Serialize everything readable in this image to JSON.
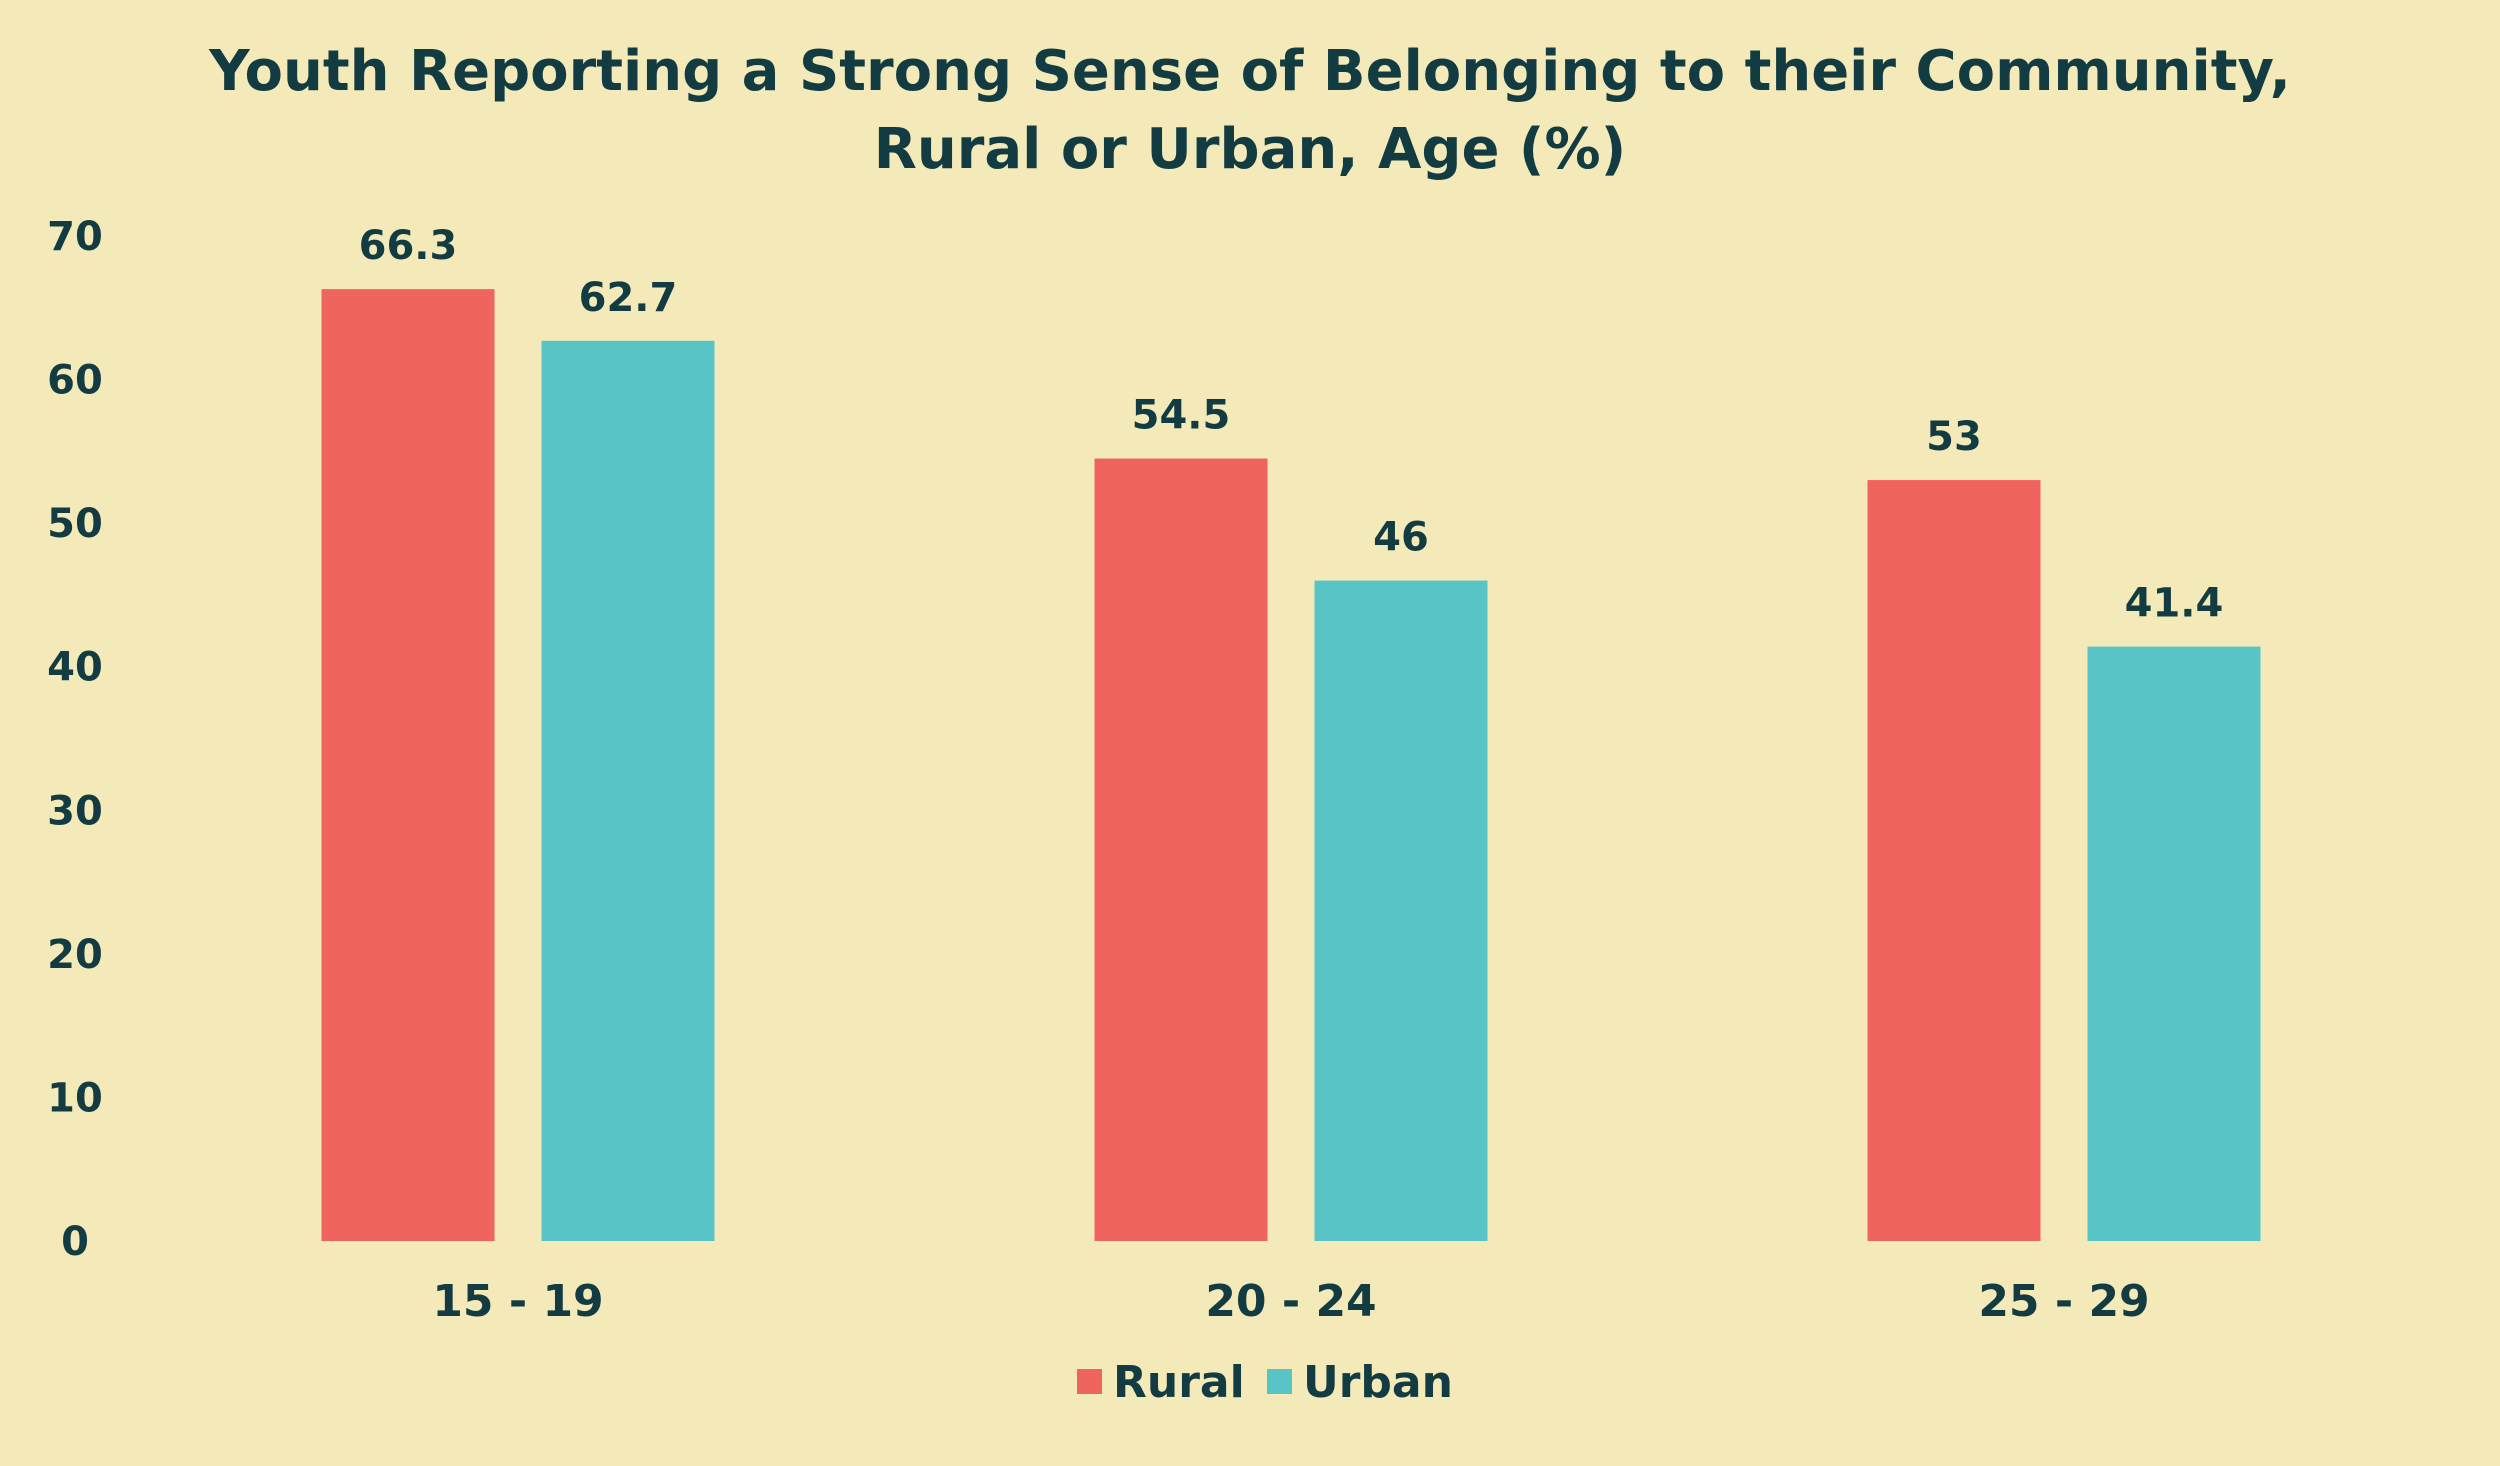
{
  "chart_data": {
    "type": "bar",
    "title": "Youth Reporting a Strong Sense of Belonging to their Community,",
    "subtitle": "Rural or Urban, Age (%)",
    "xlabel": "",
    "ylabel": "",
    "categories": [
      "15 - 19",
      "20 - 24",
      "25 - 29"
    ],
    "series": [
      {
        "name": "Rural",
        "color": "#f0645e",
        "values": [
          66.3,
          54.5,
          53
        ],
        "labels": [
          "66.3",
          "54.5",
          "53"
        ]
      },
      {
        "name": "Urban",
        "color": "#58c4c6",
        "values": [
          62.7,
          46,
          41.4
        ],
        "labels": [
          "62.7",
          "46",
          "41.4"
        ]
      }
    ],
    "ylim": [
      0,
      70
    ],
    "yticks": [
      0,
      10,
      20,
      30,
      40,
      50,
      60,
      70
    ],
    "ytick_labels": [
      "0",
      "10",
      "20",
      "30",
      "40",
      "50",
      "60",
      "70"
    ],
    "grid": false,
    "legend_position": "bottom-center"
  }
}
